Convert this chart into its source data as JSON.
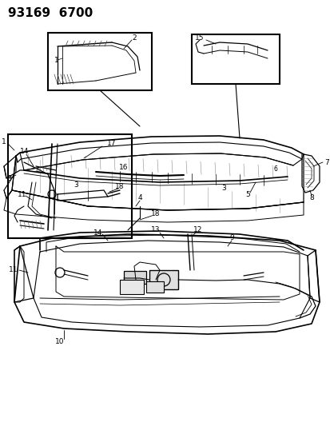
{
  "header": "93169  6700",
  "bg": "#ffffff",
  "fw": 4.14,
  "fh": 5.33,
  "dpi": 100,
  "lc": "black",
  "gray": "#888888",
  "lgray": "#bbbbbb"
}
